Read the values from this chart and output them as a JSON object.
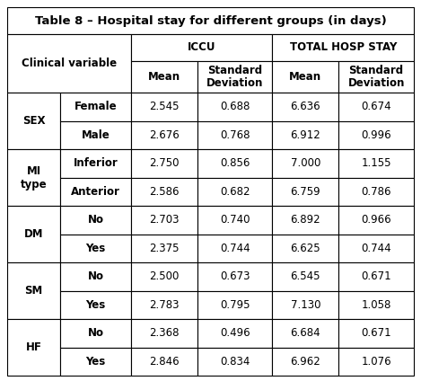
{
  "title": "Table 8 – Hospital stay for different groups (in days)",
  "col_groups": [
    "ICCU",
    "TOTAL HOSP STAY"
  ],
  "col_headers": [
    "Mean",
    "Standard\nDeviation",
    "Mean",
    "Standard\nDeviation"
  ],
  "row_groups": [
    {
      "label": "SEX",
      "rows": [
        {
          "sub": "Female",
          "vals": [
            "2.545",
            "0.688",
            "6.636",
            "0.674"
          ]
        },
        {
          "sub": "Male",
          "vals": [
            "2.676",
            "0.768",
            "6.912",
            "0.996"
          ]
        }
      ]
    },
    {
      "label": "MI\ntype",
      "rows": [
        {
          "sub": "Inferior",
          "vals": [
            "2.750",
            "0.856",
            "7.000",
            "1.155"
          ]
        },
        {
          "sub": "Anterior",
          "vals": [
            "2.586",
            "0.682",
            "6.759",
            "0.786"
          ]
        }
      ]
    },
    {
      "label": "DM",
      "rows": [
        {
          "sub": "No",
          "vals": [
            "2.703",
            "0.740",
            "6.892",
            "0.966"
          ]
        },
        {
          "sub": "Yes",
          "vals": [
            "2.375",
            "0.744",
            "6.625",
            "0.744"
          ]
        }
      ]
    },
    {
      "label": "SM",
      "rows": [
        {
          "sub": "No",
          "vals": [
            "2.500",
            "0.673",
            "6.545",
            "0.671"
          ]
        },
        {
          "sub": "Yes",
          "vals": [
            "2.783",
            "0.795",
            "7.130",
            "1.058"
          ]
        }
      ]
    },
    {
      "label": "HF",
      "rows": [
        {
          "sub": "No",
          "vals": [
            "2.368",
            "0.496",
            "6.684",
            "0.671"
          ]
        },
        {
          "sub": "Yes",
          "vals": [
            "2.846",
            "0.834",
            "6.962",
            "1.076"
          ]
        }
      ]
    }
  ],
  "bg_color": "#ffffff",
  "line_color": "#000000",
  "title_fontsize": 9.5,
  "header_fontsize": 8.5,
  "cell_fontsize": 8.5,
  "group_label_fontsize": 8.5
}
